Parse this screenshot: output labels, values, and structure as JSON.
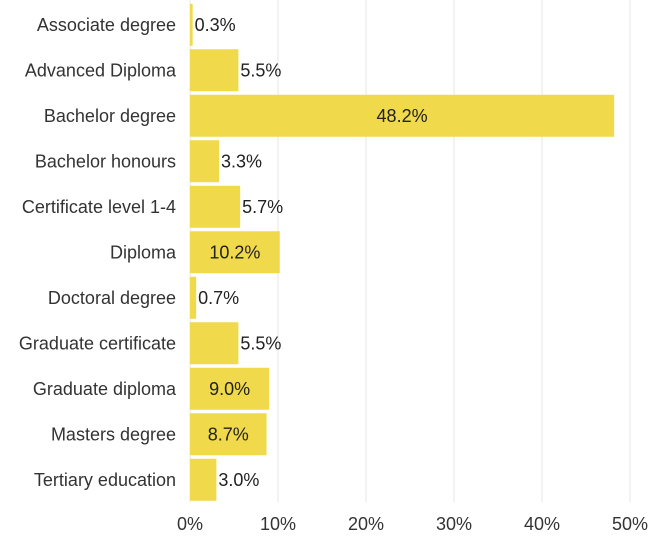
{
  "chart_data": {
    "type": "bar",
    "orientation": "horizontal",
    "title": "",
    "xlabel": "",
    "ylabel": "",
    "categories": [
      "Associate degree",
      "Advanced Diploma",
      "Bachelor degree",
      "Bachelor honours",
      "Certificate level 1-4",
      "Diploma",
      "Doctoral degree",
      "Graduate certificate",
      "Graduate diploma",
      "Masters degree",
      "Tertiary education"
    ],
    "values": [
      0.3,
      5.5,
      48.2,
      3.3,
      5.7,
      10.2,
      0.7,
      5.5,
      9.0,
      8.7,
      3.0
    ],
    "value_labels": [
      "0.3%",
      "5.5%",
      "48.2%",
      "3.3%",
      "5.7%",
      "10.2%",
      "0.7%",
      "5.5%",
      "9.0%",
      "8.7%",
      "3.0%"
    ],
    "xlim": [
      0,
      50
    ],
    "x_ticks": [
      0,
      10,
      20,
      30,
      40,
      50
    ],
    "x_tick_labels": [
      "0%",
      "10%",
      "20%",
      "30%",
      "40%",
      "50%"
    ],
    "grid": true,
    "legend": "none",
    "bar_color": "#f0d94a",
    "grid_color": "#e7e7e7",
    "text_color": "#333333"
  }
}
